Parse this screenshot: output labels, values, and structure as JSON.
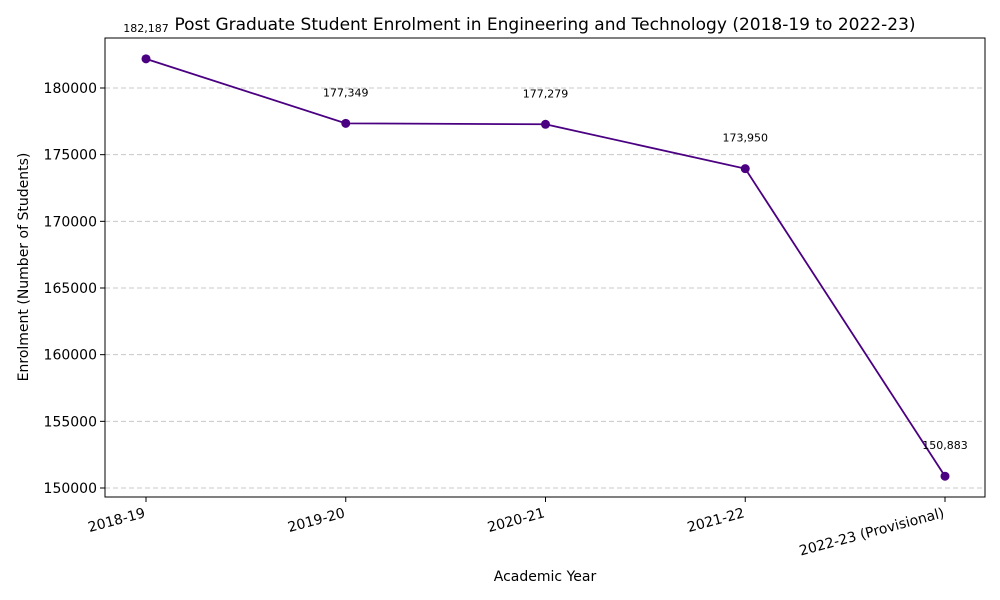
{
  "chart_data": {
    "type": "line",
    "title": "Post Graduate Student Enrolment in Engineering and Technology (2018-19 to 2022-23)",
    "xlabel": "Academic Year",
    "ylabel": "Enrolment (Number of Students)",
    "categories": [
      "2018-19",
      "2019-20",
      "2020-21",
      "2021-22",
      "2022-23 (Provisional)"
    ],
    "values": [
      182187,
      177349,
      177279,
      173950,
      150883
    ],
    "data_labels": [
      "182,187",
      "177,349",
      "177,279",
      "173,950",
      "150,883"
    ],
    "yticks": [
      150000,
      155000,
      160000,
      165000,
      170000,
      175000,
      180000
    ],
    "ytick_labels": [
      "150000",
      "155000",
      "160000",
      "165000",
      "170000",
      "175000",
      "180000"
    ],
    "ylim": [
      149325,
      183750
    ],
    "grid": "y-dashed",
    "line_color": "#4b0082",
    "marker": "circle"
  }
}
